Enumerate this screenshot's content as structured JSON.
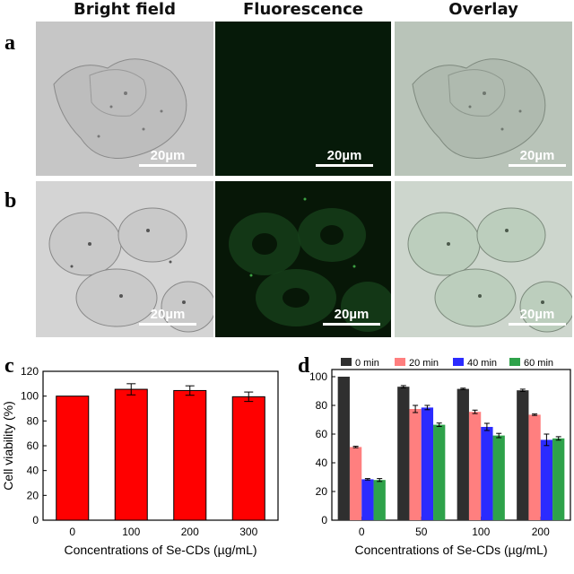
{
  "headers": {
    "bright": "Bright field",
    "fluor": "Fluorescence",
    "overlay": "Overlay"
  },
  "panel_labels": {
    "a": "a",
    "b": "b",
    "c": "c",
    "d": "d"
  },
  "scale_text": "20µm",
  "colors": {
    "bar_c": "#ff0000",
    "s0": "#2f2f2f",
    "s20": "#ff7f7f",
    "s40": "#2b2bff",
    "s60": "#2ea24a"
  },
  "chart_data": [
    {
      "type": "bar",
      "panel": "c",
      "categories": [
        "0",
        "100",
        "200",
        "300"
      ],
      "values": [
        100,
        105.5,
        104.5,
        99.5
      ],
      "errors": [
        0,
        4.5,
        3.8,
        3.8
      ],
      "xlabel": "Concentrations of Se-CDs (µg/mL)",
      "ylabel": "Cell viability (%)",
      "ylim": [
        0,
        120
      ],
      "yticks": [
        0,
        20,
        40,
        60,
        80,
        100,
        120
      ]
    },
    {
      "type": "bar",
      "panel": "d",
      "categories": [
        "0",
        "50",
        "100",
        "200"
      ],
      "series": [
        {
          "name": "0 min",
          "values": [
            100,
            93,
            91.5,
            90.5
          ],
          "errors": [
            0,
            0.8,
            0.5,
            0.8
          ]
        },
        {
          "name": "20 min",
          "values": [
            51,
            77.5,
            75.5,
            73.5
          ],
          "errors": [
            0.5,
            2.5,
            1.2,
            0.5
          ]
        },
        {
          "name": "40 min",
          "values": [
            28.5,
            78.5,
            65,
            56
          ],
          "errors": [
            0.5,
            1.5,
            2.5,
            4
          ]
        },
        {
          "name": "60 min",
          "values": [
            28,
            66.5,
            59,
            57
          ],
          "errors": [
            1,
            1.2,
            1.5,
            1.2
          ]
        }
      ],
      "xlabel": "Concentrations of Se-CDs (µg/mL)",
      "ylabel": "Cell viability (%)",
      "ylim": [
        0,
        105
      ],
      "yticks": [
        0,
        20,
        40,
        60,
        80,
        100
      ],
      "legend": "top"
    }
  ]
}
